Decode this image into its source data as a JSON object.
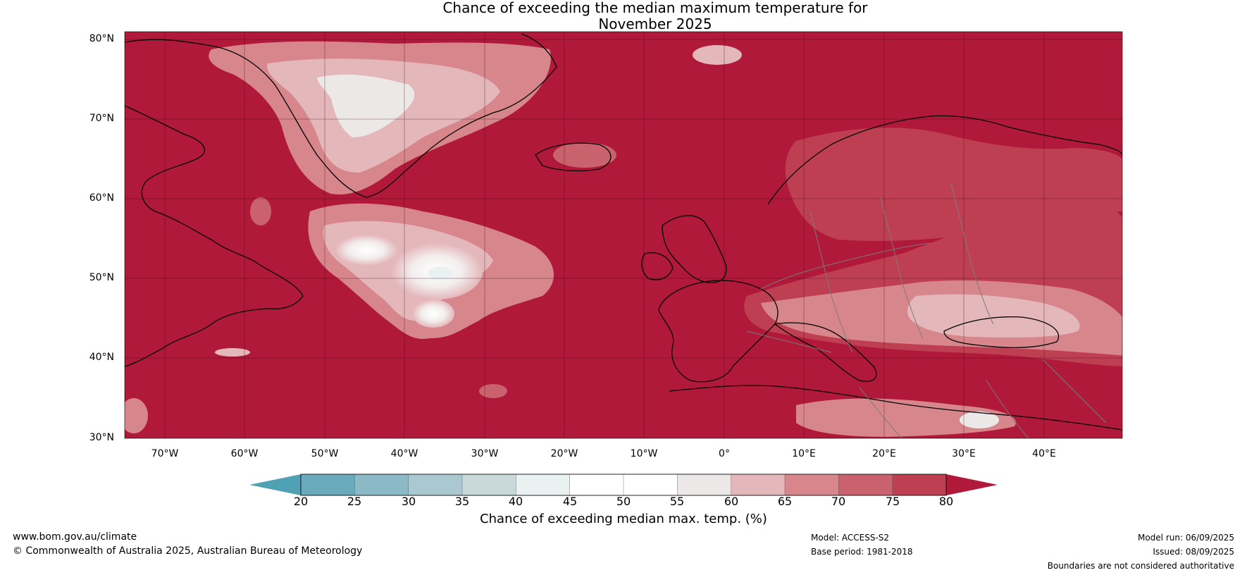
{
  "title_line1": "Chance of exceeding the median maximum temperature for",
  "title_line2": "November 2025",
  "map": {
    "lat_labels": [
      "80°N",
      "70°N",
      "60°N",
      "50°N",
      "40°N",
      "30°N"
    ],
    "lon_labels": [
      "70°W",
      "60°W",
      "50°W",
      "40°W",
      "30°W",
      "20°W",
      "10°W",
      "0°",
      "10°E",
      "20°E",
      "30°E",
      "40°E"
    ],
    "colors": {
      "c80": "#b0193a",
      "c75": "#bf3f52",
      "c70": "#c9626c",
      "c65": "#d7868c",
      "c60": "#e4b7bb",
      "c55": "#ece8e8",
      "c50": "#ffffff",
      "c40": "#e9f1f1",
      "coast": "#000000",
      "border": "#7a7a7a"
    }
  },
  "colorbar": {
    "ticks": [
      "20",
      "25",
      "30",
      "35",
      "40",
      "45",
      "50",
      "55",
      "60",
      "65",
      "70",
      "75",
      "80"
    ],
    "colors": [
      "#4fa1b4",
      "#6aabbb",
      "#8bb9c5",
      "#aac8cf",
      "#c9d9da",
      "#e9f1f1",
      "#ffffff",
      "#ffffff",
      "#ece8e8",
      "#e4b7bb",
      "#d7868c",
      "#c9626c",
      "#bf3f52",
      "#b0193a"
    ],
    "label": "Chance of exceeding median max. temp. (%)"
  },
  "footer": {
    "website": "www.bom.gov.au/climate",
    "copyright": "© Commonwealth of Australia 2025, Australian Bureau of Meteorology",
    "model": "Model: ACCESS-S2",
    "base_period": "Base period: 1981-2018",
    "model_run": "Model run: 06/09/2025",
    "issued": "Issued: 08/09/2025",
    "disclaimer": "Boundaries are not considered authoritative"
  }
}
